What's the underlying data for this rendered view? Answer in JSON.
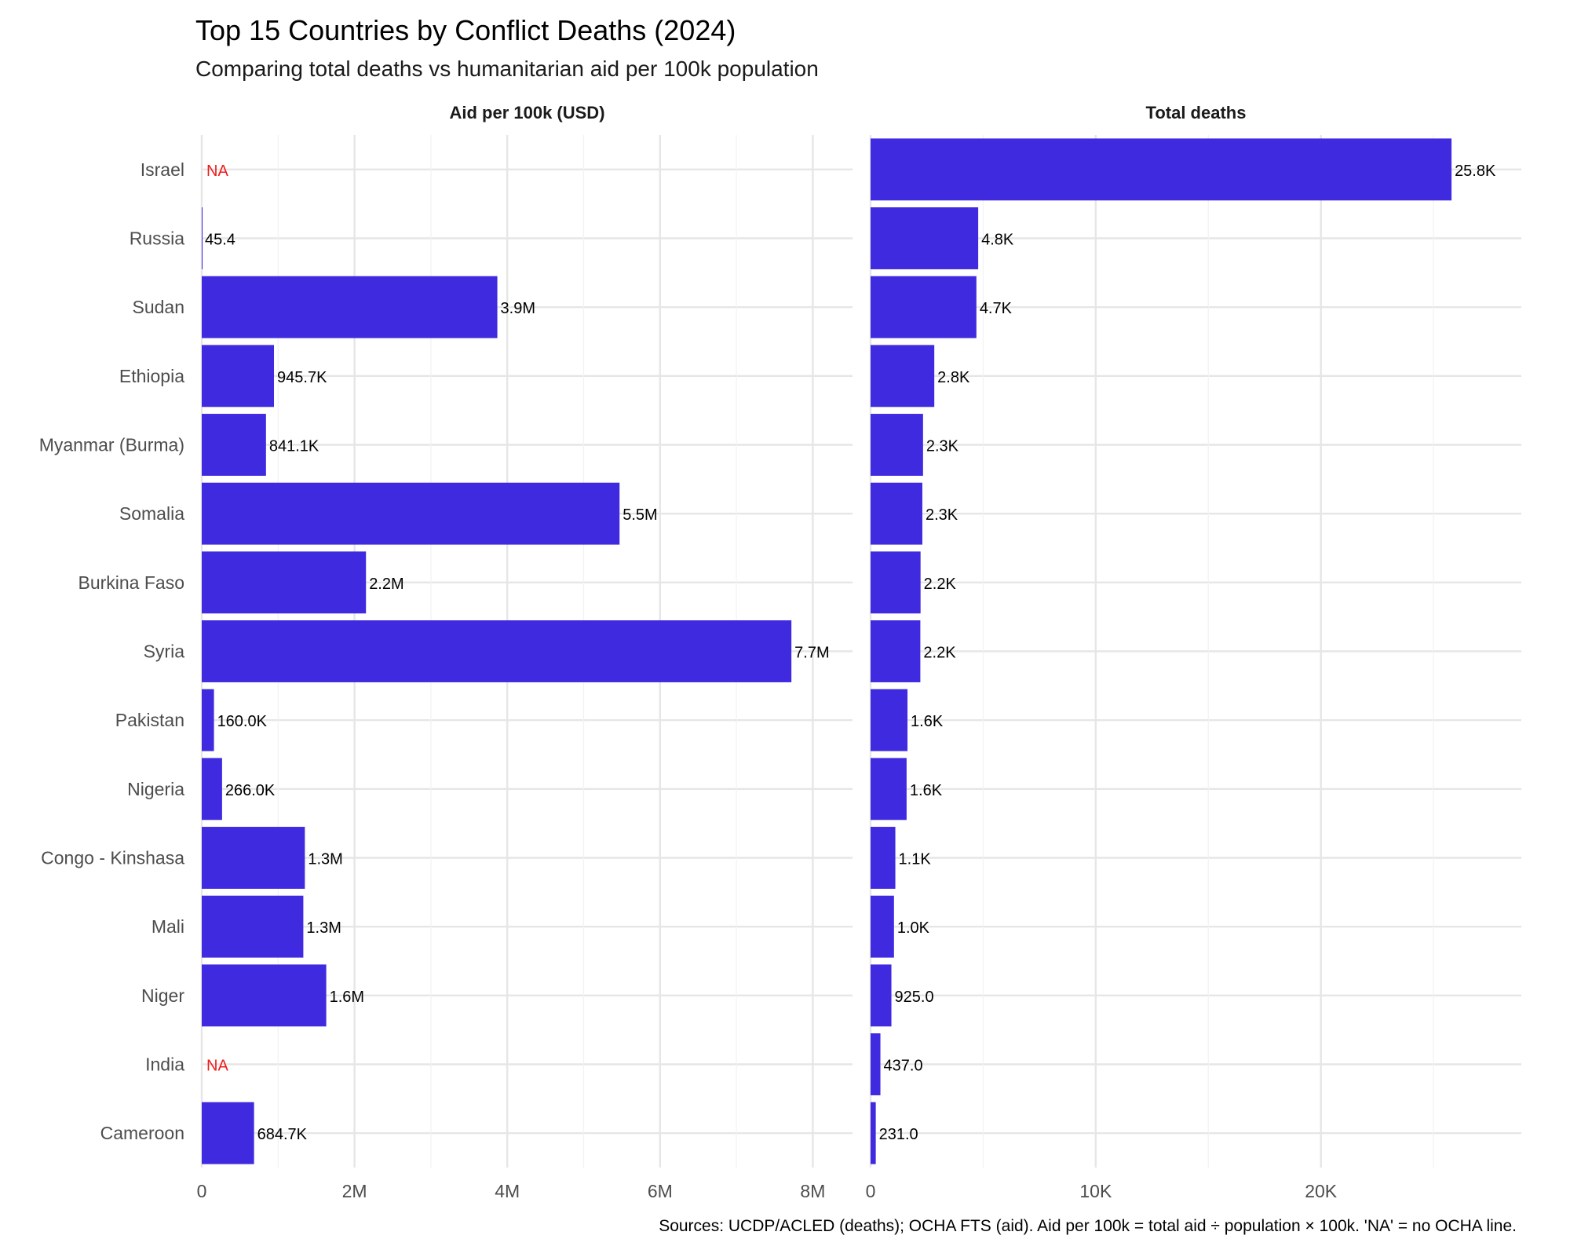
{
  "chart_data": {
    "type": "bar",
    "orientation": "horizontal",
    "title": "Top 15 Countries by Conflict Deaths (2024)",
    "subtitle": "Comparing total deaths vs humanitarian aid per 100k population",
    "caption": "Sources: UCDP/ACLED (deaths); OCHA FTS (aid). Aid per 100k = total aid ÷ population × 100k. 'NA' = no OCHA line.",
    "categories": [
      "Israel",
      "Russia",
      "Sudan",
      "Ethiopia",
      "Myanmar (Burma)",
      "Somalia",
      "Burkina Faso",
      "Syria",
      "Pakistan",
      "Nigeria",
      "Congo - Kinshasa",
      "Mali",
      "Niger",
      "India",
      "Cameroon"
    ],
    "bar_color": "#3f2ae0",
    "na_color": "#ee1c1c",
    "grid": true,
    "panels": [
      {
        "name": "Aid per 100k (USD)",
        "values": [
          null,
          45.4,
          3870000,
          945700,
          841100,
          5470000,
          2150000,
          7720000,
          160000,
          266000,
          1350000,
          1330000,
          1630000,
          null,
          684700
        ],
        "labels": [
          "NA",
          "45.4",
          "3.9M",
          "945.7K",
          "841.1K",
          "5.5M",
          "2.2M",
          "7.7M",
          "160.0K",
          "266.0K",
          "1.3M",
          "1.3M",
          "1.6M",
          "NA",
          "684.7K"
        ],
        "xlim": [
          0,
          8520000
        ],
        "ticks": [
          0,
          2000000,
          4000000,
          6000000,
          8000000
        ],
        "tick_labels": [
          "0",
          "2M",
          "4M",
          "6M",
          "8M"
        ]
      },
      {
        "name": "Total deaths",
        "values": [
          25800,
          4780,
          4700,
          2830,
          2330,
          2300,
          2220,
          2210,
          1640,
          1600,
          1100,
          1040,
          925,
          437,
          231
        ],
        "labels": [
          "25.8K",
          "4.8K",
          "4.7K",
          "2.8K",
          "2.3K",
          "2.3K",
          "2.2K",
          "2.2K",
          "1.6K",
          "1.6K",
          "1.1K",
          "1.0K",
          "925.0",
          "437.0",
          "231.0"
        ],
        "xlim": [
          0,
          28900
        ],
        "ticks": [
          0,
          10000,
          20000
        ],
        "tick_labels": [
          "0",
          "10K",
          "20K"
        ]
      }
    ]
  }
}
